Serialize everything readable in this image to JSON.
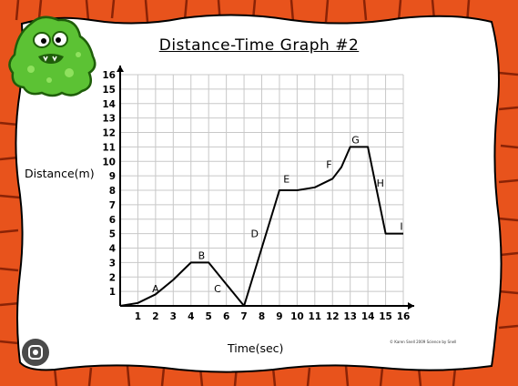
{
  "chart_data": {
    "type": "line",
    "title": "Distance-Time Graph #2",
    "xlabel": "Time(sec)",
    "ylabel": "Distance(m)",
    "xlim": [
      0,
      16
    ],
    "ylim": [
      0,
      16
    ],
    "x_ticks": [
      "1",
      "2",
      "3",
      "4",
      "5",
      "6",
      "7",
      "8",
      "9",
      "10",
      "11",
      "12",
      "13",
      "14",
      "15",
      "16"
    ],
    "y_ticks": [
      "1",
      "2",
      "3",
      "4",
      "5",
      "6",
      "7",
      "8",
      "9",
      "10",
      "11",
      "12",
      "13",
      "14",
      "15",
      "16"
    ],
    "grid": true,
    "series": [
      {
        "x": [
          0,
          1,
          2,
          3,
          3.5,
          4,
          5,
          6,
          7,
          9,
          10,
          11,
          12,
          12.5,
          13,
          14,
          15,
          16
        ],
        "y": [
          0,
          0.2,
          0.8,
          1.8,
          2.4,
          3,
          3,
          1.5,
          0,
          8,
          8,
          8.2,
          8.8,
          9.6,
          11,
          11,
          5,
          5
        ]
      }
    ],
    "annotations": [
      {
        "text": "A",
        "x": 2.0,
        "y": 1.2
      },
      {
        "text": "B",
        "x": 4.6,
        "y": 3.5
      },
      {
        "text": "C",
        "x": 5.5,
        "y": 1.2
      },
      {
        "text": "D",
        "x": 7.6,
        "y": 5.0
      },
      {
        "text": "E",
        "x": 9.4,
        "y": 8.8
      },
      {
        "text": "F",
        "x": 11.8,
        "y": 9.8
      },
      {
        "text": "G",
        "x": 13.3,
        "y": 11.5
      },
      {
        "text": "H",
        "x": 14.7,
        "y": 8.5
      },
      {
        "text": "I",
        "x": 15.9,
        "y": 5.5
      }
    ]
  },
  "credit": "© Karen Snell 2009 Science by Snell",
  "colors": {
    "frame": "#e8531c",
    "frame_dark": "#b52f0c",
    "monster": "#5cc234",
    "line": "#000000",
    "grid": "#c8c8c8"
  },
  "icons": {
    "mascot": "green-monster",
    "lens": "lens-icon"
  }
}
